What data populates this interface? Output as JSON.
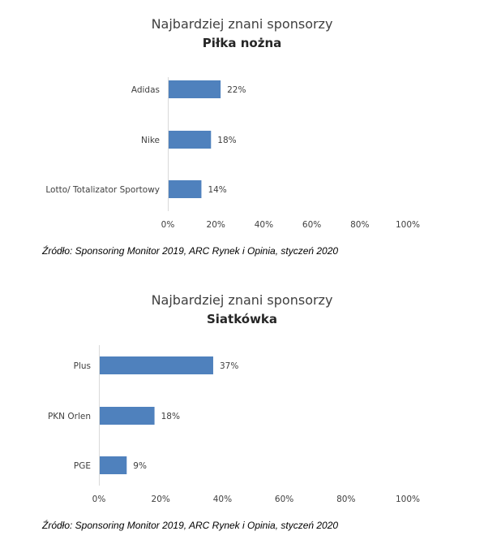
{
  "chart_data": [
    {
      "type": "bar",
      "orientation": "horizontal",
      "title": "Najbardziej znani sponsorzy",
      "subtitle": "Piłka nożna",
      "categories": [
        "Adidas",
        "Nike",
        "Lotto/ Totalizator Sportowy"
      ],
      "values": [
        22,
        18,
        14
      ],
      "value_labels": [
        "22%",
        "18%",
        "14%"
      ],
      "xlim": [
        0,
        100
      ],
      "x_ticks": [
        "0%",
        "20%",
        "40%",
        "60%",
        "80%",
        "100%"
      ],
      "bar_color": "#4f81bd",
      "grid": false,
      "source": "Źródło: Sponsoring Monitor 2019, ARC Rynek i Opinia, styczeń 2020"
    },
    {
      "type": "bar",
      "orientation": "horizontal",
      "title": "Najbardziej znani sponsorzy",
      "subtitle": "Siatkówka",
      "categories": [
        "Plus",
        "PKN Orlen",
        "PGE"
      ],
      "values": [
        37,
        18,
        9
      ],
      "value_labels": [
        "37%",
        "18%",
        "9%"
      ],
      "xlim": [
        0,
        100
      ],
      "x_ticks": [
        "0%",
        "20%",
        "40%",
        "60%",
        "80%",
        "100%"
      ],
      "bar_color": "#4f81bd",
      "grid": false,
      "source": "Źródło: Sponsoring Monitor 2019, ARC Rynek i Opinia, styczeń 2020"
    }
  ]
}
